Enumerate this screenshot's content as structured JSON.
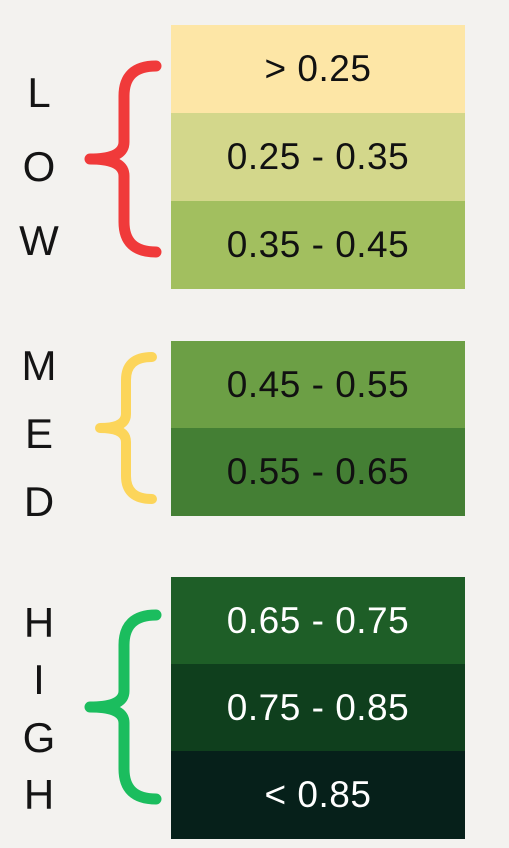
{
  "groups": [
    {
      "name": "low",
      "letters": [
        "L",
        "O",
        "W"
      ],
      "brace_color": "#f03a3a",
      "rows": [
        {
          "label": "> 0.25",
          "bg": "#fde6a6",
          "fg": "#111111"
        },
        {
          "label": "0.25 - 0.35",
          "bg": "#d3d78b",
          "fg": "#111111"
        },
        {
          "label": "0.35 - 0.45",
          "bg": "#a2bf5f",
          "fg": "#111111"
        }
      ]
    },
    {
      "name": "med",
      "letters": [
        "M",
        "E",
        "D"
      ],
      "brace_color": "#fcd55a",
      "rows": [
        {
          "label": "0.45 - 0.55",
          "bg": "#6c9f45",
          "fg": "#111111"
        },
        {
          "label": "0.55 - 0.65",
          "bg": "#447f34",
          "fg": "#111111"
        }
      ]
    },
    {
      "name": "high",
      "letters": [
        "H",
        "I",
        "G",
        "H"
      ],
      "brace_color": "#1bbd5e",
      "rows": [
        {
          "label": "0.65 - 0.75",
          "bg": "#1e5e27",
          "fg": "#ffffff"
        },
        {
          "label": "0.75 - 0.85",
          "bg": "#0f3f1d",
          "fg": "#ffffff"
        },
        {
          "label": "< 0.85",
          "bg": "#06201a",
          "fg": "#ffffff"
        }
      ]
    }
  ]
}
